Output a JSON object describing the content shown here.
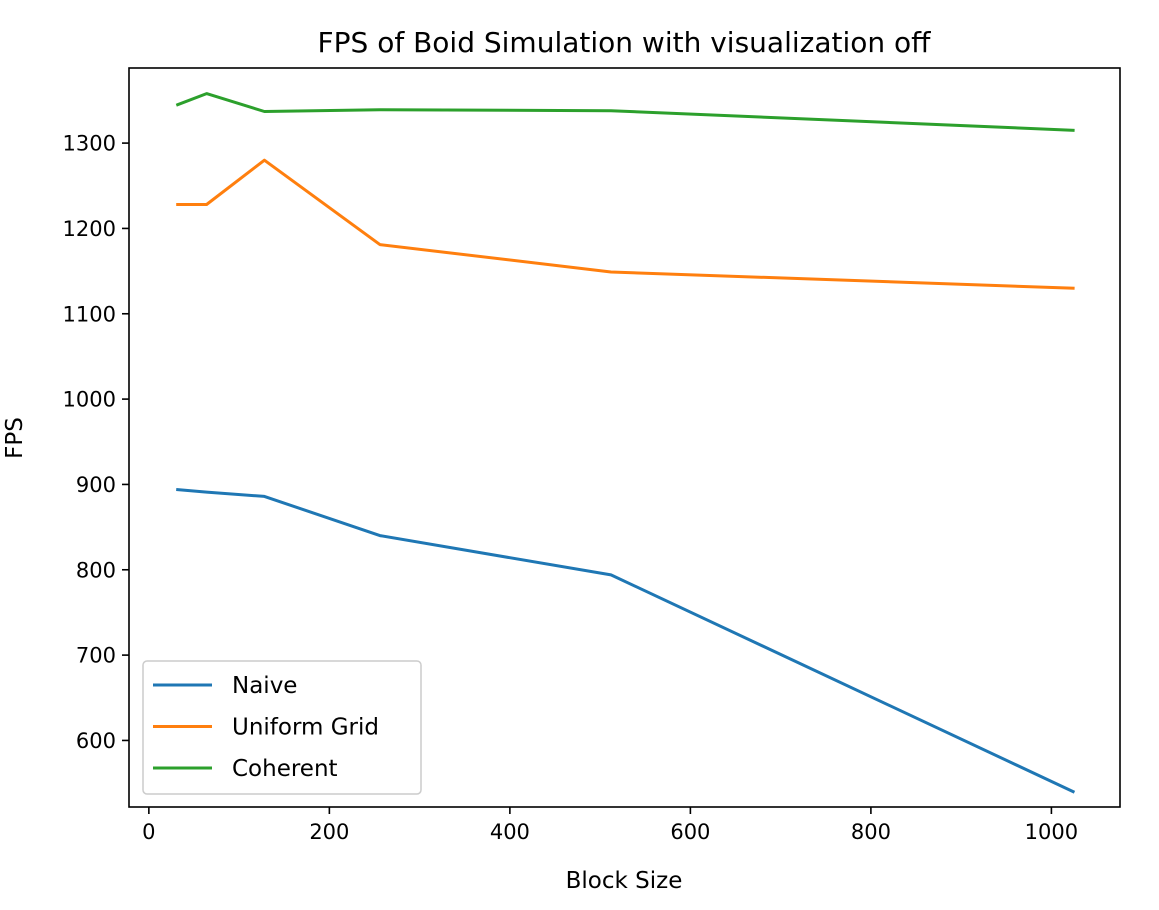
{
  "chart_data": {
    "type": "line",
    "title": "FPS of Boid Simulation with visualization off",
    "xlabel": "Block Size",
    "ylabel": "FPS",
    "x": [
      32,
      64,
      128,
      256,
      512,
      1024
    ],
    "xlim": [
      -22,
      1076
    ],
    "ylim": [
      522,
      1388
    ],
    "xticks": [
      0,
      200,
      400,
      600,
      800,
      1000
    ],
    "yticks": [
      600,
      700,
      800,
      900,
      1000,
      1100,
      1200,
      1300
    ],
    "grid": false,
    "legend_position": "lower left",
    "series": [
      {
        "name": "Naive",
        "color": "#1f77b4",
        "values": [
          894,
          891,
          886,
          840,
          794,
          540
        ]
      },
      {
        "name": "Uniform Grid",
        "color": "#ff7f0e",
        "values": [
          1228,
          1228,
          1280,
          1181,
          1149,
          1130
        ]
      },
      {
        "name": "Coherent",
        "color": "#2ca02c",
        "values": [
          1345,
          1358,
          1337,
          1339,
          1338,
          1315
        ]
      }
    ]
  }
}
